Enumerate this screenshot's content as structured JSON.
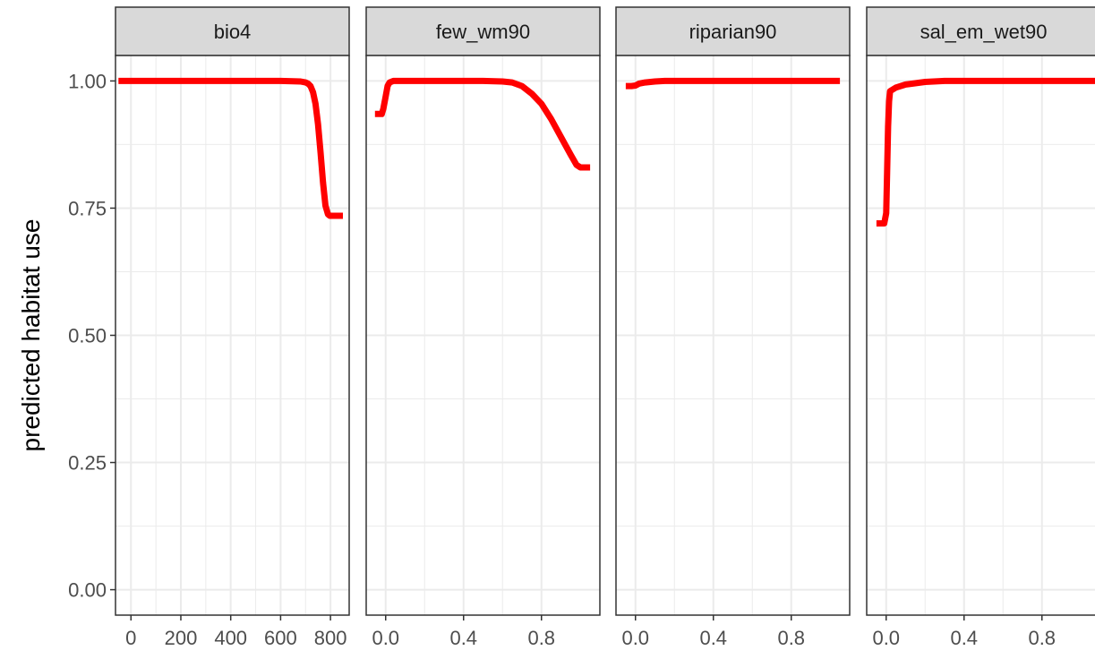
{
  "chart_data": {
    "type": "line",
    "layout": "faceted",
    "ylabel": "predicted habitat use",
    "ylim": [
      -0.05,
      1.05
    ],
    "yticks": [
      0.0,
      0.25,
      0.5,
      0.75,
      1.0
    ],
    "ytick_labels": [
      "0.00",
      "0.25",
      "0.50",
      "0.75",
      "1.00"
    ],
    "line_color": "#ff0000",
    "strip_fill": "#d9d9d9",
    "grid_color": "#ebebeb",
    "panel_border_color": "#333333",
    "grid": true,
    "panels": [
      {
        "name": "bio4",
        "xlim": [
          -62,
          875
        ],
        "xticks": [
          0,
          200,
          400,
          600,
          800
        ],
        "xtick_labels": [
          "0",
          "200",
          "400",
          "600",
          "800"
        ],
        "x": [
          -50,
          0,
          100,
          200,
          300,
          400,
          500,
          600,
          650,
          680,
          700,
          710,
          720,
          730,
          740,
          750,
          760,
          770,
          780,
          790,
          797,
          810,
          830,
          850
        ],
        "y": [
          1.0,
          1.0,
          1.0,
          1.0,
          1.0,
          1.0,
          1.0,
          1.0,
          0.9995,
          0.999,
          0.997,
          0.995,
          0.99,
          0.978,
          0.955,
          0.915,
          0.86,
          0.8,
          0.755,
          0.738,
          0.735,
          0.735,
          0.735,
          0.735
        ]
      },
      {
        "name": "few_wm90",
        "xlim": [
          -0.1,
          1.1
        ],
        "xticks": [
          0.0,
          0.4,
          0.8
        ],
        "xtick_labels": [
          "0.0",
          "0.4",
          "0.8"
        ],
        "x": [
          -0.055,
          -0.02,
          -0.012,
          0.0,
          0.01,
          0.02,
          0.04,
          0.1,
          0.3,
          0.5,
          0.6,
          0.65,
          0.7,
          0.75,
          0.8,
          0.85,
          0.9,
          0.95,
          0.98,
          1.0,
          1.03,
          1.05
        ],
        "y": [
          0.935,
          0.935,
          0.945,
          0.97,
          0.99,
          0.997,
          1.0,
          1.0,
          1.0,
          1.0,
          0.999,
          0.997,
          0.99,
          0.975,
          0.955,
          0.925,
          0.89,
          0.855,
          0.835,
          0.83,
          0.83,
          0.83
        ]
      },
      {
        "name": "riparian90",
        "xlim": [
          -0.1,
          1.1
        ],
        "xticks": [
          0.0,
          0.4,
          0.8
        ],
        "xtick_labels": [
          "0.0",
          "0.4",
          "0.8"
        ],
        "x": [
          -0.05,
          -0.02,
          0.0,
          0.02,
          0.05,
          0.1,
          0.15,
          0.2,
          0.4,
          0.6,
          0.8,
          1.0,
          1.05
        ],
        "y": [
          0.99,
          0.99,
          0.991,
          0.995,
          0.997,
          0.999,
          1.0,
          1.0,
          1.0,
          1.0,
          1.0,
          1.0,
          1.0
        ]
      },
      {
        "name": "sal_em_wet90",
        "xlim": [
          -0.1,
          1.1
        ],
        "xticks": [
          0.0,
          0.4,
          0.8
        ],
        "xtick_labels": [
          "0.0",
          "0.4",
          "0.8"
        ],
        "x": [
          -0.05,
          -0.01,
          0.0,
          0.005,
          0.01,
          0.015,
          0.02,
          0.05,
          0.1,
          0.2,
          0.3,
          0.5,
          0.8,
          1.0,
          1.1
        ],
        "y": [
          0.72,
          0.72,
          0.74,
          0.82,
          0.91,
          0.96,
          0.98,
          0.987,
          0.993,
          0.998,
          1.0,
          1.0,
          1.0,
          1.0,
          1.0
        ]
      }
    ]
  }
}
